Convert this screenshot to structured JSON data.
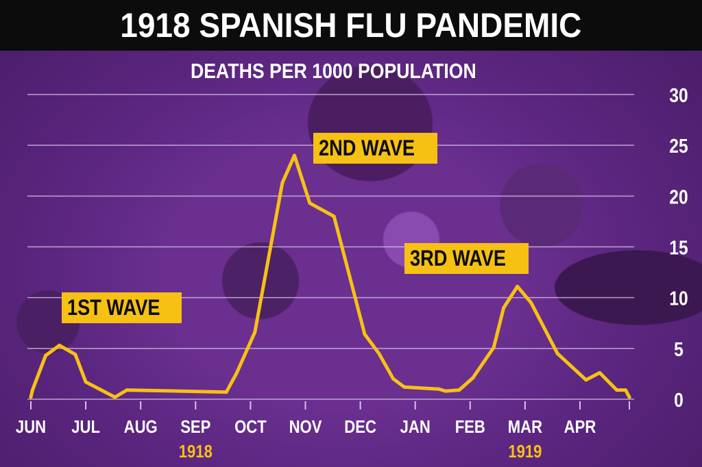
{
  "title": "1918 SPANISH FLU PANDEMIC",
  "colors": {
    "line": "#f7c114",
    "label_bg": "#f7c114",
    "year": "#f7c114",
    "grid": "#d9c3ea",
    "text": "#ffffff"
  },
  "chart_data": {
    "type": "line",
    "title": "DEATHS PER 1000 POPULATION",
    "xlabel": "",
    "ylabel": "Deaths per 1000 population",
    "ylim": [
      0,
      30
    ],
    "yticks": [
      "0",
      "5",
      "10",
      "15",
      "20",
      "25",
      "30"
    ],
    "ytick_values": [
      0,
      5,
      10,
      15,
      20,
      25,
      30
    ],
    "grid": true,
    "y_axis_side": "right",
    "xlim": [
      0,
      10.9
    ],
    "categories": [
      "JUN",
      "JUL",
      "AUG",
      "SEP",
      "OCT",
      "NOV",
      "DEC",
      "JAN",
      "FEB",
      "MAR",
      "APR"
    ],
    "year_labels": [
      {
        "label": "1918",
        "month_index": 3
      },
      {
        "label": "1919",
        "month_index": 9
      }
    ],
    "x_unit": "months since start of June 1918",
    "series": [
      {
        "name": "Deaths per 1000",
        "x": [
          0,
          0.03,
          0.27,
          0.52,
          0.81,
          1.0,
          1.53,
          1.75,
          3.56,
          3.75,
          4.08,
          4.58,
          4.8,
          5.08,
          5.52,
          6.08,
          6.34,
          6.6,
          6.8,
          7.43,
          7.55,
          7.8,
          8.05,
          8.43,
          8.61,
          8.86,
          9.11,
          9.59,
          10.11,
          10.36,
          10.67,
          10.83,
          10.9
        ],
        "values": [
          0.2,
          0.9,
          4.3,
          5.3,
          4.4,
          1.7,
          0.2,
          0.9,
          0.7,
          2.6,
          6.6,
          21.3,
          24.0,
          19.3,
          18.0,
          6.4,
          4.5,
          2.0,
          1.2,
          1.0,
          0.8,
          0.9,
          2.1,
          5.1,
          9.0,
          11.1,
          9.5,
          4.5,
          1.9,
          2.6,
          0.9,
          0.9,
          0.2
        ]
      }
    ],
    "annotations": [
      {
        "text": "1ST WAVE",
        "month": 0.5
      },
      {
        "text": "2ND WAVE",
        "month": 5.1
      },
      {
        "text": "3RD WAVE",
        "month": 8.5
      }
    ]
  }
}
